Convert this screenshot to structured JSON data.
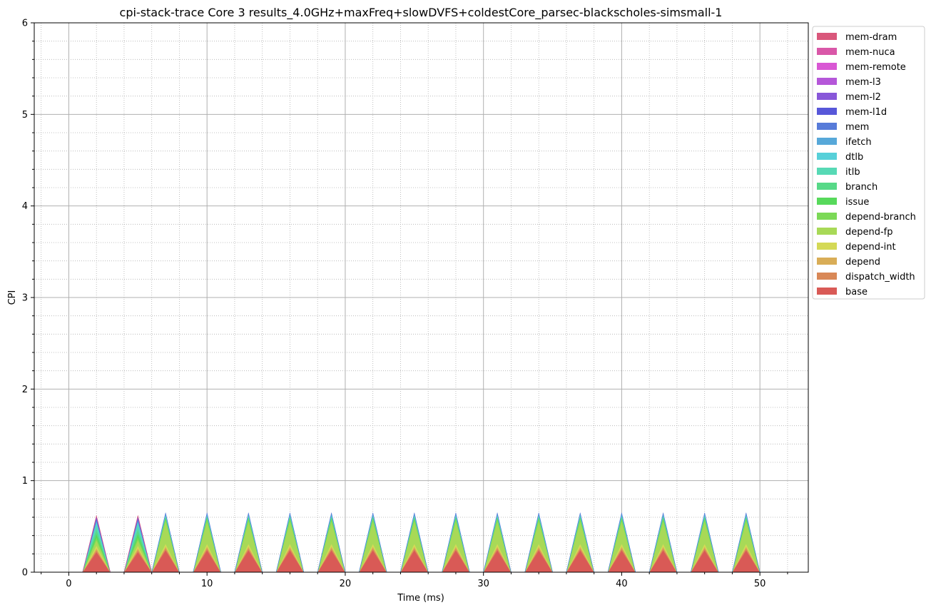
{
  "chart_data": {
    "type": "area",
    "stacked": true,
    "title": "cpi-stack-trace Core 3 results_4.0GHz+maxFreq+slowDVFS+coldestCore_parsec-blackscholes-simsmall-1",
    "xlabel": "Time (ms)",
    "ylabel": "CPI",
    "xlim": [
      -2.5,
      53.5
    ],
    "ylim": [
      0,
      6
    ],
    "x_ticks": [
      0,
      10,
      20,
      30,
      40,
      50
    ],
    "y_ticks": [
      0,
      1,
      2,
      3,
      4,
      5,
      6
    ],
    "grid": "major and minor",
    "legend_position": "outside-right",
    "peak_times": [
      2,
      5,
      7,
      10,
      13,
      16,
      19,
      22,
      25,
      28,
      31,
      34,
      37,
      40,
      43,
      46,
      49
    ],
    "peak_type": [
      "issue",
      "issue",
      "fp",
      "fp",
      "fp",
      "fp",
      "fp",
      "fp",
      "fp",
      "fp",
      "fp",
      "fp",
      "fp",
      "fp",
      "fp",
      "fp",
      "fp"
    ],
    "peak_values": {
      "issue": {
        "base": 0.22,
        "dispatch_width": 0.02,
        "depend": 0.02,
        "depend-int": 0.03,
        "depend-fp": 0.06,
        "depend-branch": 0.03,
        "issue": 0.04,
        "branch": 0.05,
        "itlb": 0.06,
        "dtlb": 0.02,
        "ifetch": 0.02,
        "mem": 0.01,
        "mem-l1d": 0.01,
        "mem-l2": 0.02,
        "mem-l3": 0.0,
        "mem-remote": 0.0,
        "mem-nuca": 0.0,
        "mem-dram": 0.01
      },
      "fp": {
        "base": 0.24,
        "dispatch_width": 0.02,
        "depend": 0.02,
        "depend-int": 0.03,
        "depend-fp": 0.25,
        "depend-branch": 0.03,
        "issue": 0.01,
        "branch": 0.01,
        "itlb": 0.01,
        "dtlb": 0.01,
        "ifetch": 0.01,
        "mem": 0.01,
        "mem-l1d": 0.0,
        "mem-l2": 0.0,
        "mem-l3": 0.0,
        "mem-remote": 0.0,
        "mem-nuca": 0.0,
        "mem-dram": 0.0
      }
    },
    "series": [
      {
        "name": "base",
        "color": "#d95a56"
      },
      {
        "name": "dispatch_width",
        "color": "#d98857"
      },
      {
        "name": "depend",
        "color": "#d9ad57"
      },
      {
        "name": "depend-int",
        "color": "#d4d956"
      },
      {
        "name": "depend-fp",
        "color": "#a8d957"
      },
      {
        "name": "depend-branch",
        "color": "#7cd957"
      },
      {
        "name": "issue",
        "color": "#57d95b"
      },
      {
        "name": "branch",
        "color": "#57d988"
      },
      {
        "name": "itlb",
        "color": "#57d9b5"
      },
      {
        "name": "dtlb",
        "color": "#57d0d9"
      },
      {
        "name": "ifetch",
        "color": "#57a8d9"
      },
      {
        "name": "mem",
        "color": "#577bd9"
      },
      {
        "name": "mem-l1d",
        "color": "#5757d9"
      },
      {
        "name": "mem-l2",
        "color": "#8857d9"
      },
      {
        "name": "mem-l3",
        "color": "#b557d9"
      },
      {
        "name": "mem-remote",
        "color": "#d957d4"
      },
      {
        "name": "mem-nuca",
        "color": "#d957a8"
      },
      {
        "name": "mem-dram",
        "color": "#d9577b"
      }
    ]
  }
}
